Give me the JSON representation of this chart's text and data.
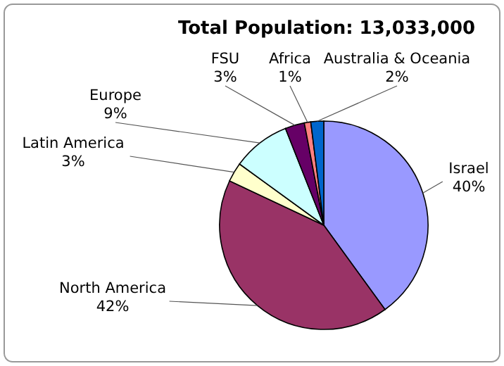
{
  "chart_data": {
    "type": "pie",
    "title": "Total Population: 13,033,000",
    "categories": [
      "Israel",
      "North America",
      "Latin America",
      "Europe",
      "FSU",
      "Africa",
      "Australia & Oceania"
    ],
    "values": [
      40,
      42,
      3,
      9,
      3,
      1,
      2
    ],
    "value_labels": [
      "40%",
      "42%",
      "3%",
      "9%",
      "3%",
      "1%",
      "2%"
    ],
    "colors": [
      "#9999ff",
      "#993366",
      "#ffffcc",
      "#ccffff",
      "#660066",
      "#ff8080",
      "#0066cc"
    ]
  }
}
